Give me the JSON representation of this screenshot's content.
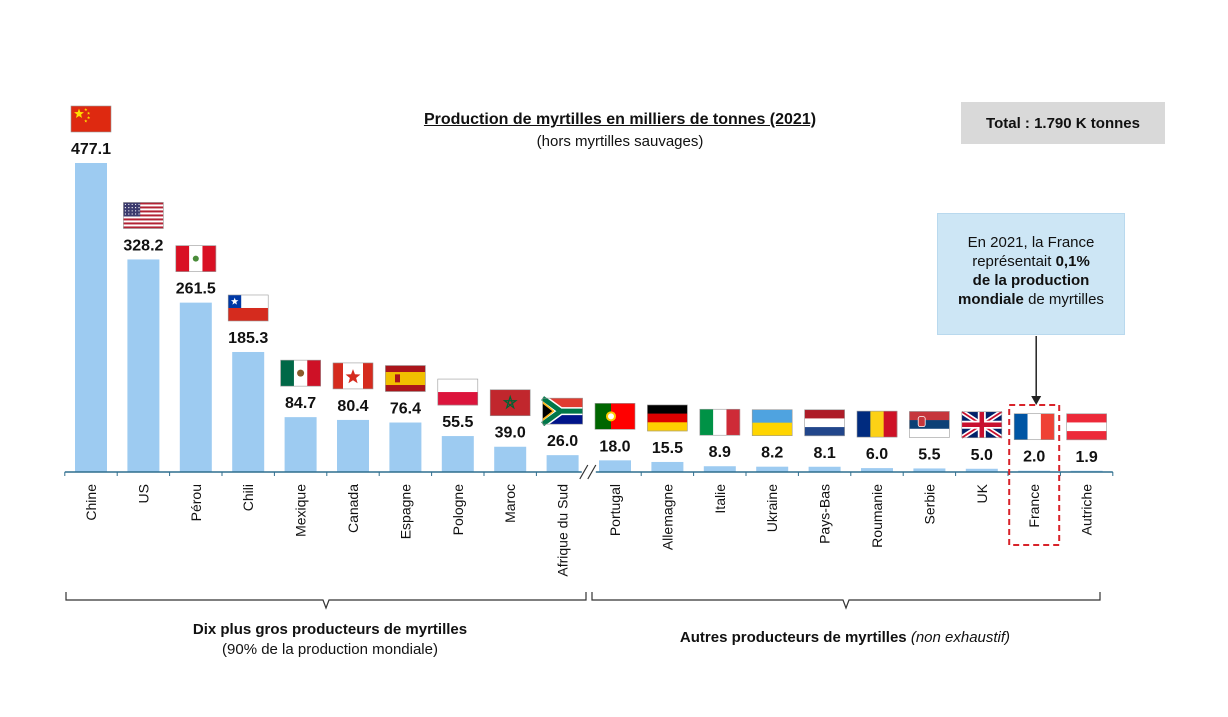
{
  "header": {
    "title": "Production de myrtilles en milliers de tonnes (2021)",
    "subtitle": "(hors myrtilles sauvages)",
    "total": "Total : 1.790 K tonnes"
  },
  "note": {
    "l1": "En 2021, la France",
    "l2": "représentait ",
    "l2_bold": "0,1%",
    "l3_bold": "de la production",
    "l4_bold": "mondiale",
    "l4": " de myrtilles"
  },
  "groups": {
    "top_label": "Dix plus gros producteurs de myrtilles",
    "top_sub": "(90% de la production mondiale)",
    "others_label": "Autres producteurs de myrtilles",
    "others_sub": "(non exhaustif)"
  },
  "colors": {
    "bar": "#9dcbf1",
    "axis": "#2f6e8e",
    "highlight": "#d8232a"
  },
  "chart_data": {
    "type": "bar",
    "categories": [
      "Chine",
      "US",
      "Pérou",
      "Chili",
      "Mexique",
      "Canada",
      "Espagne",
      "Pologne",
      "Maroc",
      "Afrique du Sud",
      "Portugal",
      "Allemagne",
      "Italie",
      "Ukraine",
      "Pays-Bas",
      "Roumanie",
      "Serbie",
      "UK",
      "France",
      "Autriche"
    ],
    "values": [
      477.1,
      328.2,
      261.5,
      185.3,
      84.7,
      80.4,
      76.4,
      55.5,
      39.0,
      26.0,
      18.0,
      15.5,
      8.9,
      8.2,
      8.1,
      6.0,
      5.5,
      5.0,
      2.0,
      1.9
    ],
    "value_labels": [
      "477.1",
      "328.2",
      "261.5",
      "185.3",
      "84.7",
      "80.4",
      "76.4",
      "55.5",
      "39.0",
      "26.0",
      "18.0",
      "15.5",
      "8.9",
      "8.2",
      "8.1",
      "6.0",
      "5.5",
      "5.0",
      "2.0",
      "1.9"
    ],
    "flags": [
      "china-flag",
      "usa-flag",
      "peru-flag",
      "chile-flag",
      "mexico-flag",
      "canada-flag",
      "spain-flag",
      "poland-flag",
      "morocco-flag",
      "south-africa-flag",
      "portugal-flag",
      "germany-flag",
      "italy-flag",
      "ukraine-flag",
      "netherlands-flag",
      "romania-flag",
      "serbia-flag",
      "uk-flag",
      "france-flag",
      "austria-flag"
    ],
    "highlight": "France",
    "axis_break_after": "Afrique du Sud"
  }
}
